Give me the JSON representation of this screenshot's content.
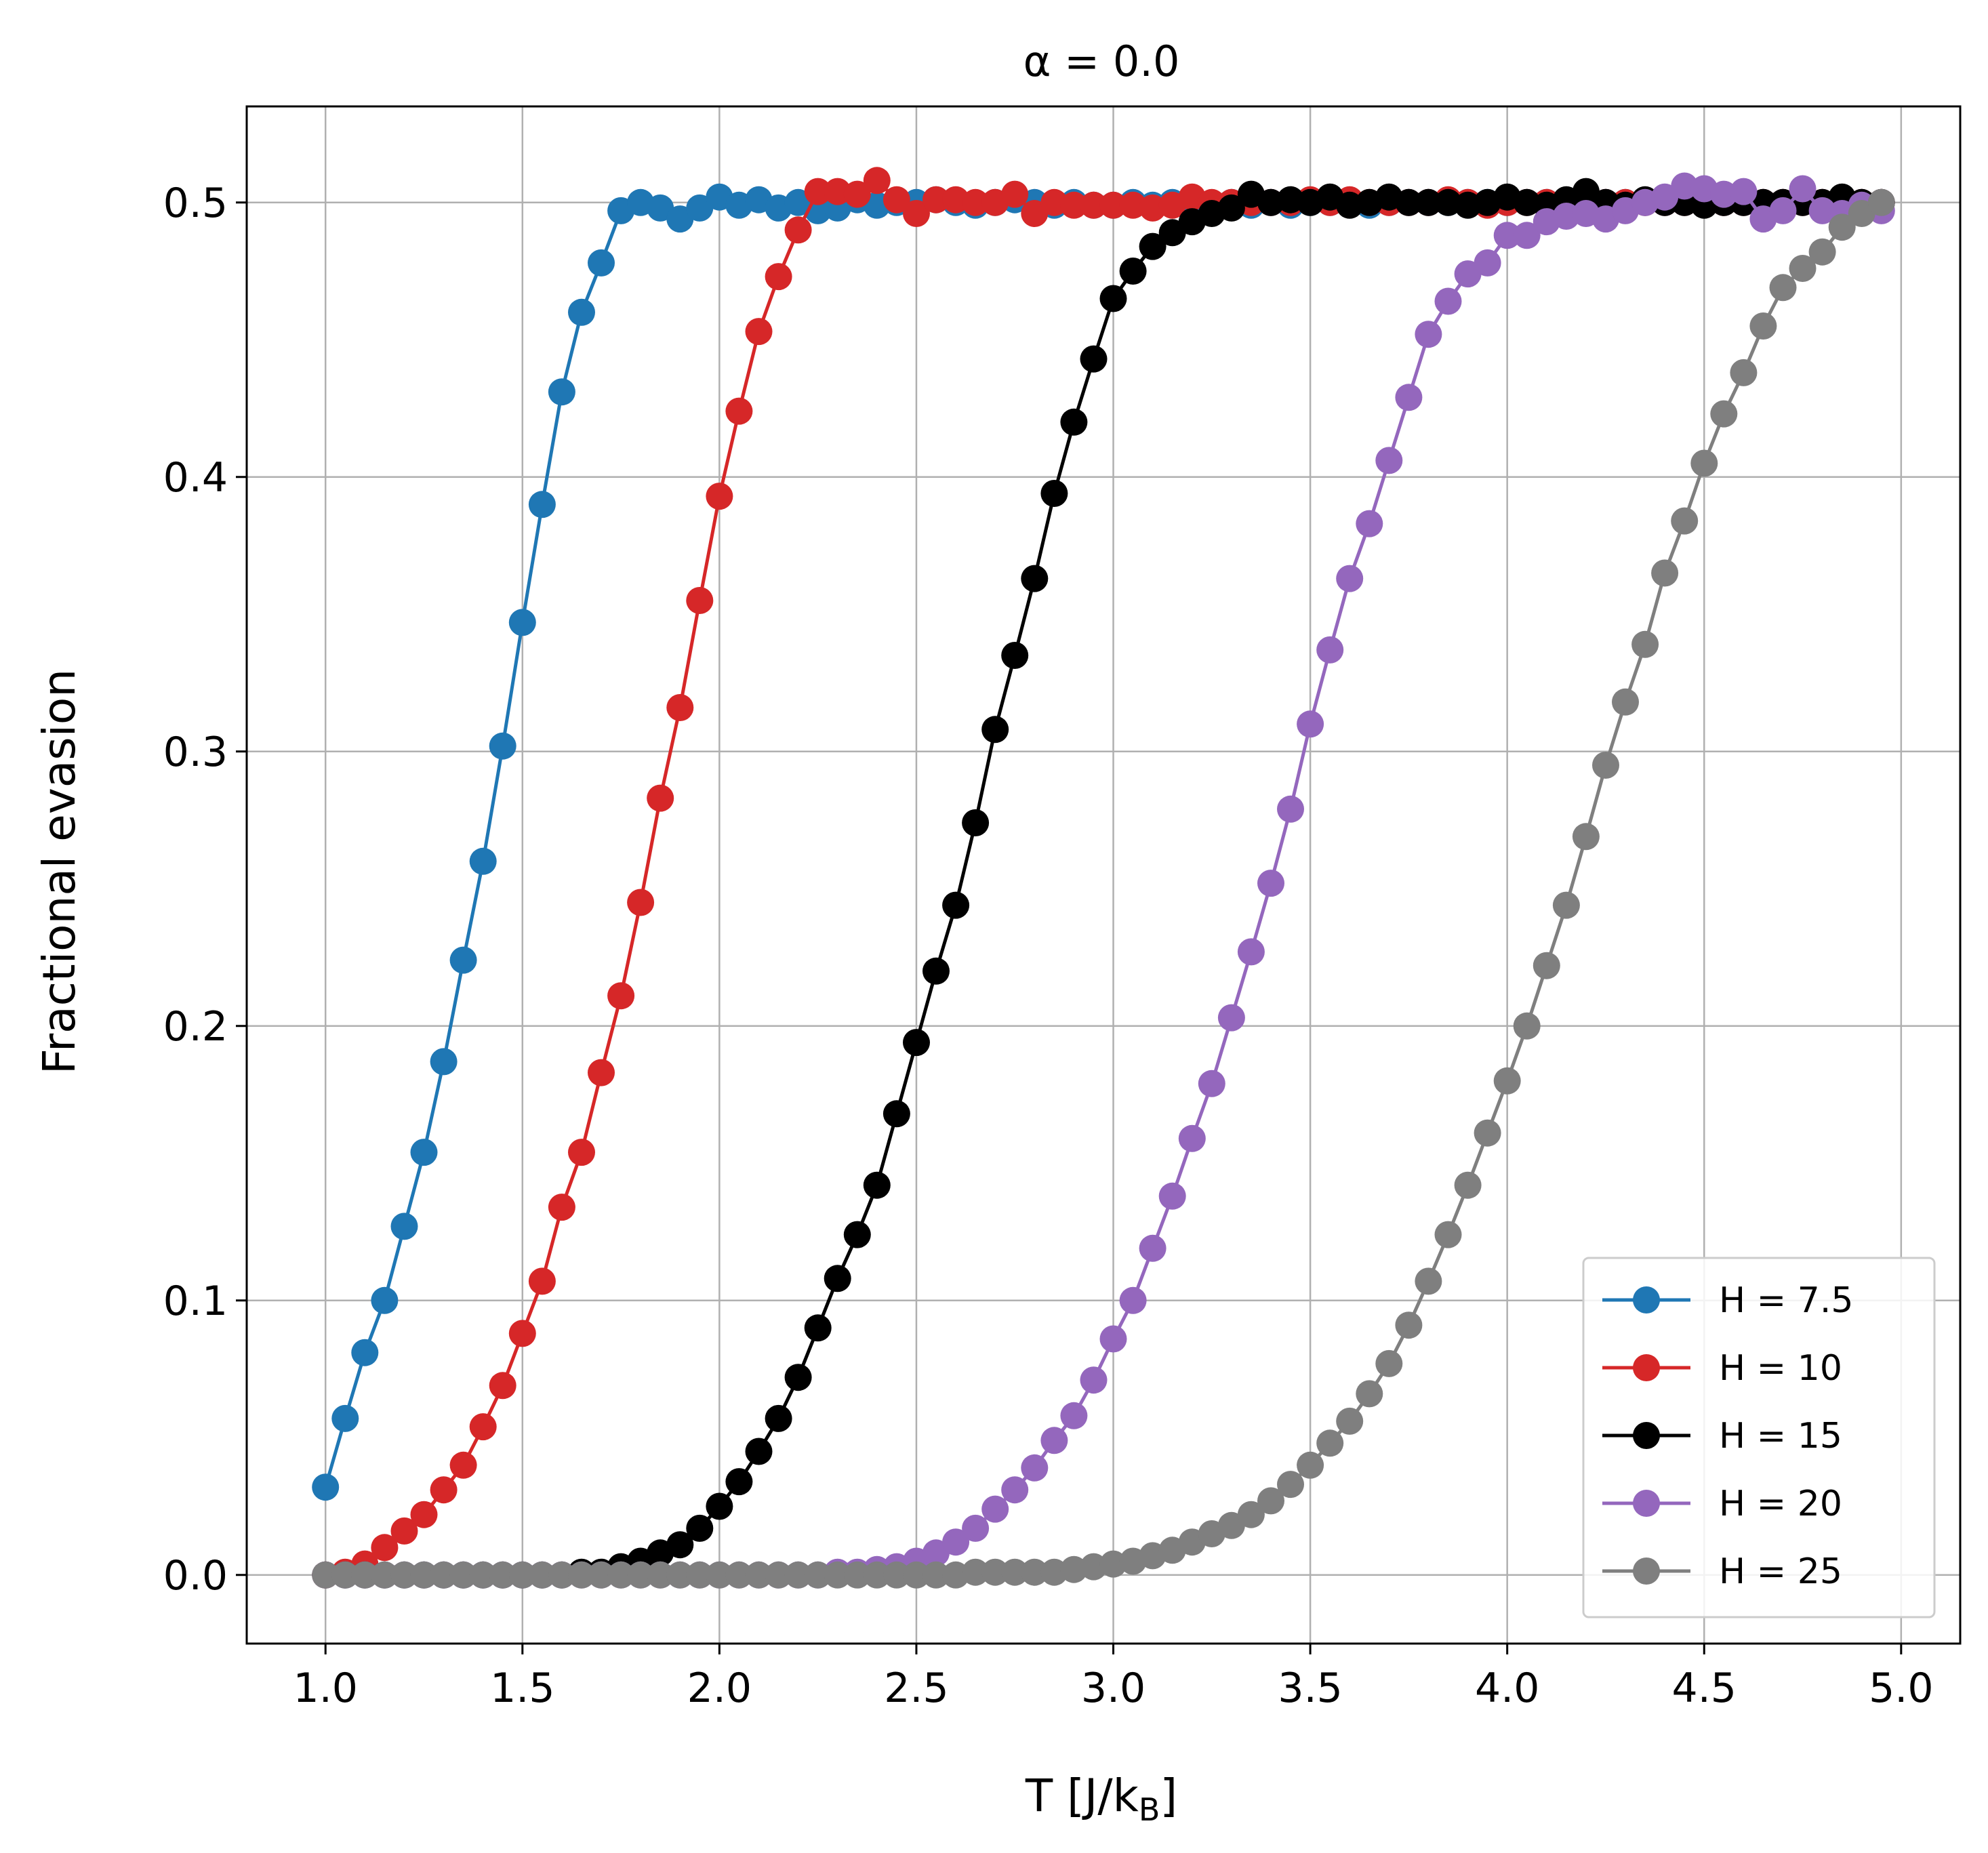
{
  "chart_data": {
    "type": "line",
    "title": "α = 0.0",
    "xlabel": "T [J/k",
    "xlabel_sub": "B",
    "xlabel_close": "]",
    "ylabel": "Fractional evasion",
    "xlim": [
      0.8,
      5.15
    ],
    "ylim": [
      -0.025,
      0.535
    ],
    "xticks": [
      1.0,
      1.5,
      2.0,
      2.5,
      3.0,
      3.5,
      4.0,
      4.5,
      5.0
    ],
    "xtick_labels": [
      "1.0",
      "1.5",
      "2.0",
      "2.5",
      "3.0",
      "3.5",
      "4.0",
      "4.5",
      "5.0"
    ],
    "yticks": [
      0.0,
      0.1,
      0.2,
      0.3,
      0.4,
      0.5
    ],
    "ytick_labels": [
      "0.0",
      "0.1",
      "0.2",
      "0.3",
      "0.4",
      "0.5"
    ],
    "grid": true,
    "legend_position": "lower-right",
    "x": [
      1.0,
      1.05,
      1.1,
      1.15,
      1.2,
      1.25,
      1.3,
      1.35,
      1.4,
      1.45,
      1.5,
      1.55,
      1.6,
      1.65,
      1.7,
      1.75,
      1.8,
      1.85,
      1.9,
      1.95,
      2.0,
      2.05,
      2.1,
      2.15,
      2.2,
      2.25,
      2.3,
      2.35,
      2.4,
      2.45,
      2.5,
      2.55,
      2.6,
      2.65,
      2.7,
      2.75,
      2.8,
      2.85,
      2.9,
      2.95,
      3.0,
      3.05,
      3.1,
      3.15,
      3.2,
      3.25,
      3.3,
      3.35,
      3.4,
      3.45,
      3.5,
      3.55,
      3.6,
      3.65,
      3.7,
      3.75,
      3.8,
      3.85,
      3.9,
      3.95,
      4.0,
      4.05,
      4.1,
      4.15,
      4.2,
      4.25,
      4.3,
      4.35,
      4.4,
      4.45,
      4.5,
      4.55,
      4.6,
      4.65,
      4.7,
      4.75,
      4.8,
      4.85,
      4.9,
      4.95
    ],
    "series": [
      {
        "name": "H = 7.5",
        "color": "#1f77b4",
        "values": [
          0.032,
          0.057,
          0.081,
          0.1,
          0.127,
          0.154,
          0.187,
          0.224,
          0.26,
          0.302,
          0.347,
          0.39,
          0.431,
          0.46,
          0.478,
          0.497,
          0.5,
          0.498,
          0.494,
          0.498,
          0.502,
          0.499,
          0.501,
          0.498,
          0.5,
          0.497,
          0.498,
          0.501,
          0.499,
          0.5,
          0.5,
          0.501,
          0.5,
          0.499,
          0.5,
          0.501,
          0.5,
          0.499,
          0.5,
          0.499,
          0.499,
          0.5,
          0.499,
          0.5,
          0.501,
          0.499,
          0.5,
          0.499,
          0.5,
          0.499,
          0.5,
          0.5,
          0.5,
          0.499,
          0.5,
          0.5,
          0.5,
          0.5,
          0.5,
          0.5,
          0.5,
          0.5,
          0.5,
          0.5,
          0.5,
          0.5,
          0.5,
          0.5,
          0.5,
          0.5,
          0.5,
          0.5,
          0.5,
          0.5,
          0.5,
          0.5,
          0.5,
          0.5,
          0.5,
          0.5
        ]
      },
      {
        "name": "H = 10",
        "color": "#d62728",
        "values": [
          0.0,
          0.001,
          0.004,
          0.01,
          0.016,
          0.022,
          0.031,
          0.04,
          0.054,
          0.069,
          0.088,
          0.107,
          0.134,
          0.154,
          0.183,
          0.211,
          0.245,
          0.283,
          0.316,
          0.355,
          0.393,
          0.424,
          0.453,
          0.473,
          0.49,
          0.504,
          0.504,
          0.503,
          0.508,
          0.501,
          0.496,
          0.501,
          0.501,
          0.5,
          0.5,
          0.503,
          0.496,
          0.5,
          0.499,
          0.499,
          0.499,
          0.499,
          0.498,
          0.499,
          0.502,
          0.5,
          0.5,
          0.5,
          0.5,
          0.5,
          0.501,
          0.5,
          0.501,
          0.5,
          0.5,
          0.5,
          0.5,
          0.501,
          0.5,
          0.499,
          0.5,
          0.5,
          0.5,
          0.5,
          0.5,
          0.5,
          0.5,
          0.5,
          0.5,
          0.5,
          0.5,
          0.5,
          0.5,
          0.5,
          0.5,
          0.5,
          0.5,
          0.5,
          0.5,
          0.5
        ]
      },
      {
        "name": "H = 15",
        "color": "#000000",
        "values": [
          0.0,
          0.0,
          0.0,
          0.0,
          0.0,
          0.0,
          0.0,
          0.0,
          0.0,
          0.0,
          0.0,
          0.0,
          0.0,
          0.001,
          0.001,
          0.003,
          0.005,
          0.008,
          0.011,
          0.017,
          0.025,
          0.034,
          0.045,
          0.057,
          0.072,
          0.09,
          0.108,
          0.124,
          0.142,
          0.168,
          0.194,
          0.22,
          0.244,
          0.274,
          0.308,
          0.335,
          0.363,
          0.394,
          0.42,
          0.443,
          0.465,
          0.475,
          0.484,
          0.489,
          0.493,
          0.496,
          0.498,
          0.503,
          0.5,
          0.501,
          0.5,
          0.502,
          0.499,
          0.5,
          0.502,
          0.5,
          0.5,
          0.5,
          0.499,
          0.5,
          0.502,
          0.5,
          0.499,
          0.501,
          0.504,
          0.5,
          0.499,
          0.501,
          0.5,
          0.5,
          0.499,
          0.5,
          0.5,
          0.5,
          0.5,
          0.5,
          0.5,
          0.502,
          0.5,
          0.5
        ]
      },
      {
        "name": "H = 20",
        "color": "#9467bd",
        "values": [
          0.0,
          0.0,
          0.0,
          0.0,
          0.0,
          0.0,
          0.0,
          0.0,
          0.0,
          0.0,
          0.0,
          0.0,
          0.0,
          0.0,
          0.0,
          0.0,
          0.0,
          0.0,
          0.0,
          0.0,
          0.0,
          0.0,
          0.0,
          0.0,
          0.0,
          0.0,
          0.001,
          0.001,
          0.002,
          0.003,
          0.005,
          0.008,
          0.012,
          0.017,
          0.024,
          0.031,
          0.039,
          0.049,
          0.058,
          0.071,
          0.086,
          0.1,
          0.119,
          0.138,
          0.159,
          0.179,
          0.203,
          0.227,
          0.252,
          0.279,
          0.31,
          0.337,
          0.363,
          0.383,
          0.406,
          0.429,
          0.452,
          0.464,
          0.474,
          0.478,
          0.488,
          0.488,
          0.493,
          0.495,
          0.496,
          0.494,
          0.497,
          0.5,
          0.502,
          0.506,
          0.505,
          0.503,
          0.504,
          0.494,
          0.497,
          0.505,
          0.497,
          0.496,
          0.499,
          0.497
        ]
      },
      {
        "name": "H = 25",
        "color": "#7f7f7f",
        "values": [
          0.0,
          0.0,
          0.0,
          0.0,
          0.0,
          0.0,
          0.0,
          0.0,
          0.0,
          0.0,
          0.0,
          0.0,
          0.0,
          0.0,
          0.0,
          0.0,
          0.0,
          0.0,
          0.0,
          0.0,
          0.0,
          0.0,
          0.0,
          0.0,
          0.0,
          0.0,
          0.0,
          0.0,
          0.0,
          0.0,
          0.0,
          0.0,
          0.0,
          0.001,
          0.001,
          0.001,
          0.001,
          0.001,
          0.002,
          0.003,
          0.004,
          0.005,
          0.007,
          0.009,
          0.012,
          0.015,
          0.018,
          0.022,
          0.027,
          0.033,
          0.04,
          0.048,
          0.056,
          0.066,
          0.077,
          0.091,
          0.107,
          0.124,
          0.142,
          0.161,
          0.18,
          0.2,
          0.222,
          0.244,
          0.269,
          0.295,
          0.318,
          0.339,
          0.365,
          0.384,
          0.405,
          0.423,
          0.438,
          0.455,
          0.469,
          0.476,
          0.482,
          0.491,
          0.496,
          0.5
        ]
      }
    ]
  }
}
